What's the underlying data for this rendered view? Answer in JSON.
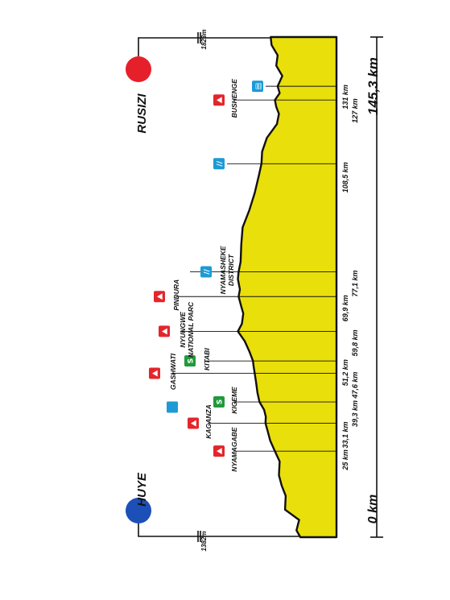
{
  "stage": {
    "start_town": "HUYE",
    "finish_town": "RUSIZI",
    "start_altitude": "1382m",
    "finish_altitude": "1823m",
    "start_km": "0 km",
    "total_km": "145,3 km",
    "colors": {
      "profile_fill": "#e9df0b",
      "start_marker": "#1d4fb8",
      "finish_marker": "#e5202a",
      "climb_icon": "#e3262b",
      "sprint_icon": "#1f9a3c",
      "info_icon": "#1d9ad6"
    }
  },
  "points": [
    {
      "name": "NYAMAGABE",
      "sub": "",
      "km_label": "25 km",
      "icon": "climb-icon",
      "value": "25"
    },
    {
      "name": "KIGEME",
      "sub": "",
      "km_label": "39,3 km",
      "icon": "sprint-icon",
      "value": "39.3"
    },
    {
      "name": "KAGANZA",
      "sub": "",
      "km_label": "33,1 km",
      "icon": "climb-icon",
      "value": "33.1"
    },
    {
      "name": "GASHWATI",
      "sub": "",
      "km_label": "47,6 km",
      "icon": "climb-icon",
      "value": "47.6"
    },
    {
      "name": "KITABI",
      "sub": "",
      "km_label": "51,2 km",
      "icon": "sprint-icon",
      "value": "51.2"
    },
    {
      "name": "NYUNGWE",
      "sub": "NATIONAL PARC",
      "km_label": "59,8 km",
      "icon": "climb-icon",
      "value": "59.8"
    },
    {
      "name": "PINDURA",
      "sub": "",
      "km_label": "69,9 km",
      "icon": "climb-icon",
      "value": "69.9"
    },
    {
      "name": "NYAMASHEKE",
      "sub": "DISTRICT",
      "km_label": "77,1 km",
      "icon": "feed-icon",
      "value": "77.1"
    },
    {
      "name": "",
      "sub": "",
      "km_label": "108,5 km",
      "icon": "feed-icon",
      "value": "108.5"
    },
    {
      "name": "BUSHENGE",
      "sub": "",
      "km_label": "127 km",
      "icon": "climb-icon",
      "value": "127"
    },
    {
      "name": "",
      "sub": "",
      "km_label": "131 km",
      "icon": "food-icon",
      "value": "131"
    }
  ],
  "chart_data": {
    "type": "area",
    "x_unit": "km",
    "x": [
      0,
      2,
      5,
      8,
      12,
      15,
      18,
      22,
      25,
      28,
      31,
      33.1,
      35,
      37,
      39.3,
      42,
      45,
      47.6,
      50,
      51.2,
      54,
      57,
      59.8,
      62,
      65,
      67,
      69.9,
      72,
      75,
      77.1,
      80,
      85,
      90,
      95,
      100,
      105,
      108.5,
      112,
      116,
      120,
      123,
      125,
      127,
      129,
      131,
      134,
      137,
      140,
      143,
      145.3
    ],
    "y": [
      1382,
      1440,
      1400,
      1610,
      1600,
      1660,
      1700,
      1690,
      1760,
      1830,
      1870,
      1900,
      1895,
      1920,
      1990,
      2020,
      2040,
      2060,
      2080,
      2085,
      2140,
      2210,
      2310,
      2250,
      2230,
      2260,
      2300,
      2280,
      2310,
      2300,
      2270,
      2260,
      2240,
      2140,
      2060,
      2000,
      1960,
      1950,
      1880,
      1730,
      1700,
      1740,
      1760,
      1690,
      1720,
      1650,
      1740,
      1720,
      1810,
      1823
    ]
  }
}
